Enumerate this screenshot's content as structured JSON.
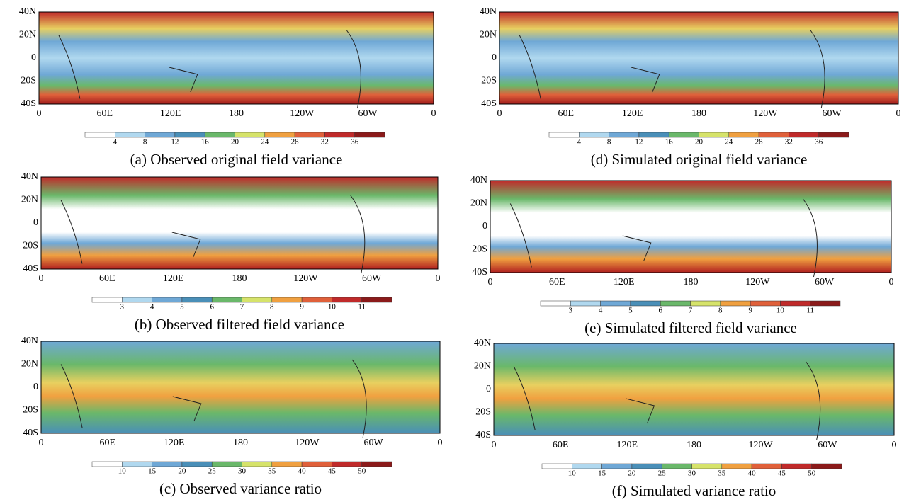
{
  "panels": [
    {
      "caption": "(a) Observed original field variance",
      "lat_labels": [
        "40N",
        "20N",
        "0",
        "20S",
        "40S"
      ],
      "lon_labels": [
        "0",
        "60E",
        "120E",
        "180",
        "120W",
        "60W",
        "0"
      ],
      "colorbar_labels": [
        "4",
        "8",
        "12",
        "16",
        "20",
        "24",
        "28",
        "32",
        "36"
      ]
    },
    {
      "caption": "(b) Observed filtered field variance",
      "lat_labels": [
        "40N",
        "20N",
        "0",
        "20S",
        "40S"
      ],
      "lon_labels": [
        "0",
        "60E",
        "120E",
        "180",
        "120W",
        "60W",
        "0"
      ],
      "colorbar_labels": [
        "3",
        "4",
        "5",
        "6",
        "7",
        "8",
        "9",
        "10",
        "11"
      ]
    },
    {
      "caption": "(c) Observed variance ratio",
      "lat_labels": [
        "40N",
        "20N",
        "0",
        "20S",
        "40S"
      ],
      "lon_labels": [
        "0",
        "60E",
        "120E",
        "180",
        "120W",
        "60W",
        "0"
      ],
      "colorbar_labels": [
        "10",
        "15",
        "20",
        "25",
        "30",
        "35",
        "40",
        "45",
        "50"
      ]
    },
    {
      "caption": "(d) Simulated original field variance",
      "lat_labels": [
        "40N",
        "20N",
        "0",
        "20S",
        "40S"
      ],
      "lon_labels": [
        "0",
        "60E",
        "120E",
        "180",
        "120W",
        "60W",
        "0"
      ],
      "colorbar_labels": [
        "4",
        "8",
        "12",
        "16",
        "20",
        "24",
        "28",
        "32",
        "36"
      ]
    },
    {
      "caption": "(e) Simulated filtered field variance",
      "lat_labels": [
        "40N",
        "20N",
        "0",
        "20S",
        "40S"
      ],
      "lon_labels": [
        "0",
        "60E",
        "120E",
        "180",
        "120W",
        "60W",
        "0"
      ],
      "colorbar_labels": [
        "3",
        "4",
        "5",
        "6",
        "7",
        "8",
        "9",
        "10",
        "11"
      ]
    },
    {
      "caption": "(f) Simulated variance ratio",
      "lat_labels": [
        "40N",
        "20N",
        "0",
        "20S",
        "40S"
      ],
      "lon_labels": [
        "0",
        "60E",
        "120E",
        "180",
        "120W",
        "60W",
        "0"
      ],
      "colorbar_labels": [
        "10",
        "15",
        "20",
        "25",
        "30",
        "35",
        "40",
        "45",
        "50"
      ]
    }
  ]
}
